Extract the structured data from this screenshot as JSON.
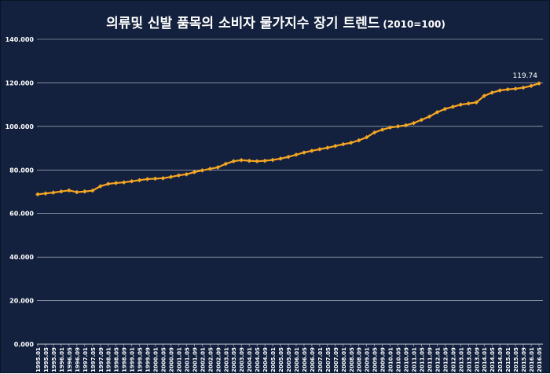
{
  "chart_data": {
    "type": "line",
    "title": "의류및 신발 품목의 소비자 물가지수 장기 트렌드",
    "subtitle": "(2010=100)",
    "xlabel": "",
    "ylabel": "",
    "ylim": [
      0,
      140
    ],
    "yticks": [
      "0.000",
      "20.000",
      "40.000",
      "60.000",
      "80.000",
      "100.000",
      "120.000",
      "140.000"
    ],
    "ytick_values": [
      0,
      20,
      40,
      60,
      80,
      100,
      120,
      140
    ],
    "grid": true,
    "colors": {
      "background": "#13213e",
      "line": "#f5a623",
      "grid": "#c8cdd8",
      "text": "#ffffff"
    },
    "x_tick_labels": [
      "1995.01",
      "1995.05",
      "1995.09",
      "1996.01",
      "1996.05",
      "1996.09",
      "1997.01",
      "1997.05",
      "1997.09",
      "1998.01",
      "1998.05",
      "1998.09",
      "1999.01",
      "1999.05",
      "1999.09",
      "2000.01",
      "2000.05",
      "2000.09",
      "2001.01",
      "2001.05",
      "2001.09",
      "2002.01",
      "2002.05",
      "2002.09",
      "2003.01",
      "2003.05",
      "2003.09",
      "2004.01",
      "2004.05",
      "2004.09",
      "2005.01",
      "2005.05",
      "2005.09",
      "2006.01",
      "2006.05",
      "2006.09",
      "2007.01",
      "2007.05",
      "2007.09",
      "2008.01",
      "2008.05",
      "2008.09",
      "2009.01",
      "2009.05",
      "2009.09",
      "2010.01",
      "2010.05",
      "2010.09",
      "2011.01",
      "2011.05",
      "2011.09",
      "2012.01",
      "2012.05",
      "2012.09",
      "2013.01",
      "2013.05",
      "2013.09",
      "2014.01",
      "2014.05",
      "2014.09",
      "2015.01",
      "2015.05",
      "2015.09",
      "2016.01",
      "2016.05"
    ],
    "series": [
      {
        "x": [
          "1995.01",
          "1995.05",
          "1995.09",
          "1996.01",
          "1996.05",
          "1996.09",
          "1997.01",
          "1997.05",
          "1997.09",
          "1998.01",
          "1998.05",
          "1998.09",
          "1999.01",
          "1999.05",
          "1999.09",
          "2000.01",
          "2000.05",
          "2000.09",
          "2001.01",
          "2001.05",
          "2001.09",
          "2002.01",
          "2002.05",
          "2002.09",
          "2003.01",
          "2003.05",
          "2003.09",
          "2004.01",
          "2004.05",
          "2004.09",
          "2005.01",
          "2005.05",
          "2005.09",
          "2006.01",
          "2006.05",
          "2006.09",
          "2007.01",
          "2007.05",
          "2007.09",
          "2008.01",
          "2008.05",
          "2008.09",
          "2009.01",
          "2009.05",
          "2009.09",
          "2010.01",
          "2010.05",
          "2010.09",
          "2011.01",
          "2011.05",
          "2011.09",
          "2012.01",
          "2012.05",
          "2012.09",
          "2013.01",
          "2013.05",
          "2013.09",
          "2014.01",
          "2014.05",
          "2014.09",
          "2015.01",
          "2015.05",
          "2015.09",
          "2016.01",
          "2016.05"
        ],
        "values": [
          68.8,
          69.2,
          69.6,
          70.1,
          70.6,
          69.8,
          70.1,
          70.5,
          72.5,
          73.6,
          74.0,
          74.3,
          74.8,
          75.3,
          75.8,
          76.0,
          76.2,
          76.8,
          77.5,
          78.0,
          79.0,
          79.8,
          80.5,
          81.2,
          82.8,
          84.0,
          84.5,
          84.2,
          84.0,
          84.2,
          84.6,
          85.2,
          86.0,
          87.0,
          88.0,
          88.8,
          89.5,
          90.2,
          91.0,
          91.8,
          92.5,
          93.6,
          95.0,
          97.2,
          98.5,
          99.5,
          100.0,
          100.5,
          101.5,
          103.0,
          104.5,
          106.5,
          108.0,
          109.0,
          110.0,
          110.5,
          111.0,
          114.0,
          115.5,
          116.5,
          117.0,
          117.3,
          117.8,
          118.6,
          119.74
        ]
      }
    ],
    "last_label": "119.74"
  }
}
